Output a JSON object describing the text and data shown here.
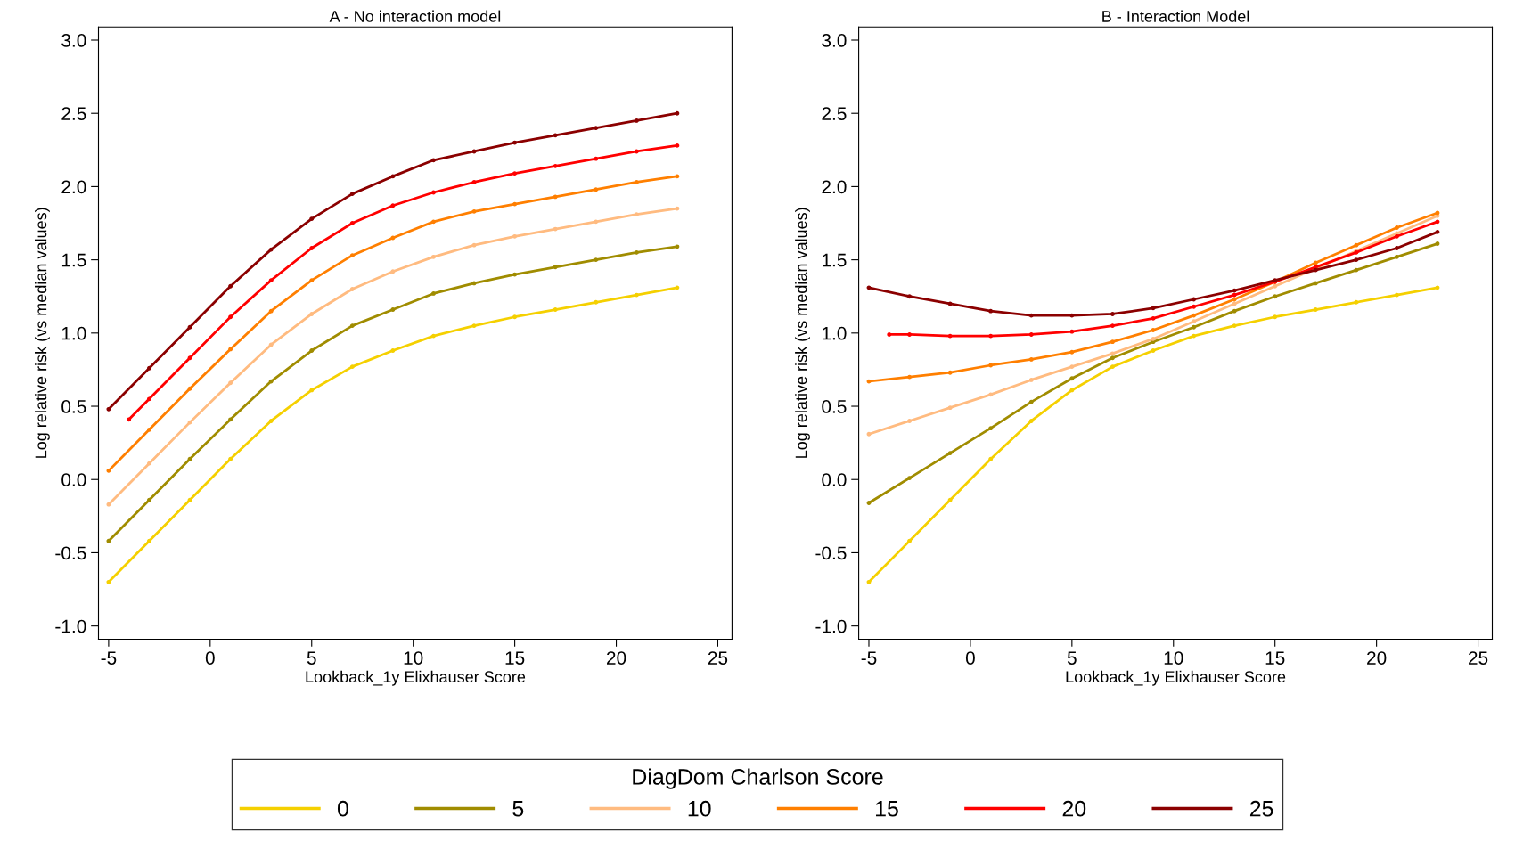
{
  "chart_data": [
    {
      "type": "line",
      "title": "A - No interaction model",
      "xlabel": "Lookback_1y Elixhauser Score",
      "ylabel": "Log relative risk (vs median values)",
      "legend_title": "DiagDom Charlson Score",
      "legend": "bottom",
      "grid": false,
      "marker": "circle",
      "line_style": "solid",
      "x": [
        -5,
        -3,
        -1,
        1,
        3,
        5,
        7,
        9,
        11,
        13,
        15,
        17,
        19,
        21,
        23
      ],
      "xlim": [
        -5.5,
        25.7
      ],
      "xticks": [
        -5,
        0,
        5,
        10,
        15,
        20,
        25
      ],
      "ylim": [
        -1.09,
        3.09
      ],
      "yticks": [
        {
          "value": -1,
          "label": "-1.0"
        },
        {
          "value": -0.5,
          "label": "-0.5"
        },
        {
          "value": 0,
          "label": "0.0"
        },
        {
          "value": 0.5,
          "label": "0.5"
        },
        {
          "value": 1,
          "label": "1.0"
        },
        {
          "value": 1.5,
          "label": "1.5"
        },
        {
          "value": 2,
          "label": "2.0"
        },
        {
          "value": 2.5,
          "label": "2.5"
        },
        {
          "value": 3,
          "label": "3.0"
        }
      ],
      "series": [
        {
          "name": "0",
          "color": "#f5d000",
          "values": [
            -0.7,
            -0.42,
            -0.14,
            0.14,
            0.4,
            0.61,
            0.77,
            0.88,
            0.98,
            1.05,
            1.11,
            1.16,
            1.21,
            1.26,
            1.31
          ]
        },
        {
          "name": "5",
          "color": "#a08c00",
          "values": [
            -0.42,
            -0.14,
            0.14,
            0.41,
            0.67,
            0.88,
            1.05,
            1.16,
            1.27,
            1.34,
            1.4,
            1.45,
            1.5,
            1.55,
            1.59
          ]
        },
        {
          "name": "10",
          "color": "#ffbb80",
          "values": [
            -0.17,
            0.11,
            0.39,
            0.66,
            0.92,
            1.13,
            1.3,
            1.42,
            1.52,
            1.6,
            1.66,
            1.71,
            1.76,
            1.81,
            1.85
          ]
        },
        {
          "name": "15",
          "color": "#ff7f00",
          "values": [
            0.06,
            0.34,
            0.62,
            0.89,
            1.15,
            1.36,
            1.53,
            1.65,
            1.76,
            1.83,
            1.88,
            1.93,
            1.98,
            2.03,
            2.07
          ]
        },
        {
          "name": "20",
          "color": "#ff0000",
          "x": [
            -4,
            -3,
            -1,
            1,
            3,
            5,
            7,
            9,
            11,
            13,
            15,
            17,
            19,
            21,
            23
          ],
          "values": [
            0.41,
            0.55,
            0.83,
            1.11,
            1.36,
            1.58,
            1.75,
            1.87,
            1.96,
            2.03,
            2.09,
            2.14,
            2.19,
            2.24,
            2.28
          ]
        },
        {
          "name": "25",
          "color": "#8b0000",
          "values": [
            0.48,
            0.76,
            1.04,
            1.32,
            1.57,
            1.78,
            1.95,
            2.07,
            2.18,
            2.24,
            2.3,
            2.35,
            2.4,
            2.45,
            2.5
          ]
        }
      ]
    },
    {
      "type": "line",
      "title": "B - Interaction Model",
      "xlabel": "Lookback_1y Elixhauser Score",
      "ylabel": "Log relative risk (vs median values)",
      "legend": "bottom",
      "grid": false,
      "marker": "circle",
      "line_style": "solid",
      "x": [
        -5,
        -3,
        -1,
        1,
        3,
        5,
        7,
        9,
        11,
        13,
        15,
        17,
        19,
        21,
        23
      ],
      "xlim": [
        -5.5,
        25.7
      ],
      "xticks": [
        -5,
        0,
        5,
        10,
        15,
        20,
        25
      ],
      "ylim": [
        -1.09,
        3.09
      ],
      "yticks": [
        {
          "value": -1,
          "label": "-1.0"
        },
        {
          "value": -0.5,
          "label": "-0.5"
        },
        {
          "value": 0,
          "label": "0.0"
        },
        {
          "value": 0.5,
          "label": "0.5"
        },
        {
          "value": 1,
          "label": "1.0"
        },
        {
          "value": 1.5,
          "label": "1.5"
        },
        {
          "value": 2,
          "label": "2.0"
        },
        {
          "value": 2.5,
          "label": "2.5"
        },
        {
          "value": 3,
          "label": "3.0"
        }
      ],
      "series": [
        {
          "name": "0",
          "color": "#f5d000",
          "values": [
            -0.7,
            -0.42,
            -0.14,
            0.14,
            0.4,
            0.61,
            0.77,
            0.88,
            0.98,
            1.05,
            1.11,
            1.16,
            1.21,
            1.26,
            1.31
          ]
        },
        {
          "name": "5",
          "color": "#a08c00",
          "values": [
            -0.16,
            0.01,
            0.18,
            0.35,
            0.53,
            0.69,
            0.83,
            0.94,
            1.04,
            1.15,
            1.25,
            1.34,
            1.43,
            1.52,
            1.61
          ]
        },
        {
          "name": "10",
          "color": "#ffbb80",
          "values": [
            0.31,
            0.4,
            0.49,
            0.58,
            0.68,
            0.77,
            0.86,
            0.96,
            1.08,
            1.2,
            1.32,
            1.44,
            1.56,
            1.68,
            1.8
          ]
        },
        {
          "name": "15",
          "color": "#ff7f00",
          "values": [
            0.67,
            0.7,
            0.73,
            0.78,
            0.82,
            0.87,
            0.94,
            1.02,
            1.12,
            1.23,
            1.35,
            1.48,
            1.6,
            1.72,
            1.82
          ]
        },
        {
          "name": "20",
          "color": "#ff0000",
          "x": [
            -4,
            -3,
            -1,
            1,
            3,
            5,
            7,
            9,
            11,
            13,
            15,
            17,
            19,
            21,
            23
          ],
          "values": [
            0.99,
            0.99,
            0.98,
            0.98,
            0.99,
            1.01,
            1.05,
            1.1,
            1.18,
            1.26,
            1.35,
            1.45,
            1.55,
            1.66,
            1.76
          ]
        },
        {
          "name": "25",
          "color": "#8b0000",
          "values": [
            1.31,
            1.25,
            1.2,
            1.15,
            1.12,
            1.12,
            1.13,
            1.17,
            1.23,
            1.29,
            1.36,
            1.43,
            1.5,
            1.58,
            1.69
          ]
        }
      ]
    }
  ]
}
